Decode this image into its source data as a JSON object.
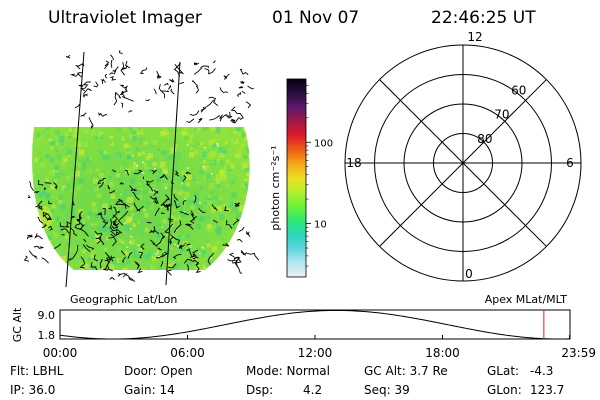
{
  "header": {
    "instrument": "Ultraviolet Imager",
    "date": "01 Nov 07",
    "time": "22:46:25 UT"
  },
  "image_panel": {
    "label": "Geographic Lat/Lon"
  },
  "colorbar": {
    "unit_label": "photon cm⁻²s⁻¹",
    "tick_labels": [
      "100",
      "10"
    ],
    "tick_values": [
      100,
      10
    ],
    "log_min": 2.2,
    "log_max": 600,
    "stops": [
      "#e8f0f4",
      "#b8e6ee",
      "#5fd6e0",
      "#28d8b8",
      "#2ee870",
      "#6cf23a",
      "#b4f02c",
      "#eedd22",
      "#f4a818",
      "#ee5c16",
      "#dc1c2a",
      "#a01848",
      "#60186e",
      "#2a0c40",
      "#060010"
    ]
  },
  "polar_plot": {
    "label": "Apex MLat/MLT",
    "mlt_labels": [
      {
        "text": "12",
        "angle": 0
      },
      {
        "text": "6",
        "angle": 90
      },
      {
        "text": "0",
        "angle": 180
      },
      {
        "text": "18",
        "angle": 270
      }
    ],
    "mlat_labels": [
      "60",
      "70",
      "80"
    ],
    "mlat_rings": [
      50,
      60,
      70,
      80
    ]
  },
  "altitude_plot": {
    "ylabel": "GC Alt",
    "y_ticks": [
      "9.0",
      "1.8"
    ],
    "ylim": [
      1.8,
      9.0
    ],
    "x_ticks": [
      "00:00",
      "06:00",
      "12:00",
      "18:00",
      "23:59"
    ],
    "x_tick_hours": [
      0,
      6,
      12,
      18,
      23.98
    ],
    "current_hour": 22.77,
    "marker_color": "#e02020"
  },
  "status": {
    "flt": "Flt: LBHL",
    "ip": "IP: 36.0",
    "door": "Door: Open",
    "gain": "Gain: 14",
    "mode": "Mode: Normal",
    "dsp_label": "Dsp:",
    "dsp_value": "4.2",
    "gc_alt": "GC Alt: 3.7 Re",
    "seq": "Seq: 39",
    "glat_label": "GLat:",
    "glat_value": "-4.3",
    "glon_label": "GLon:",
    "glon_value": "123.7"
  }
}
